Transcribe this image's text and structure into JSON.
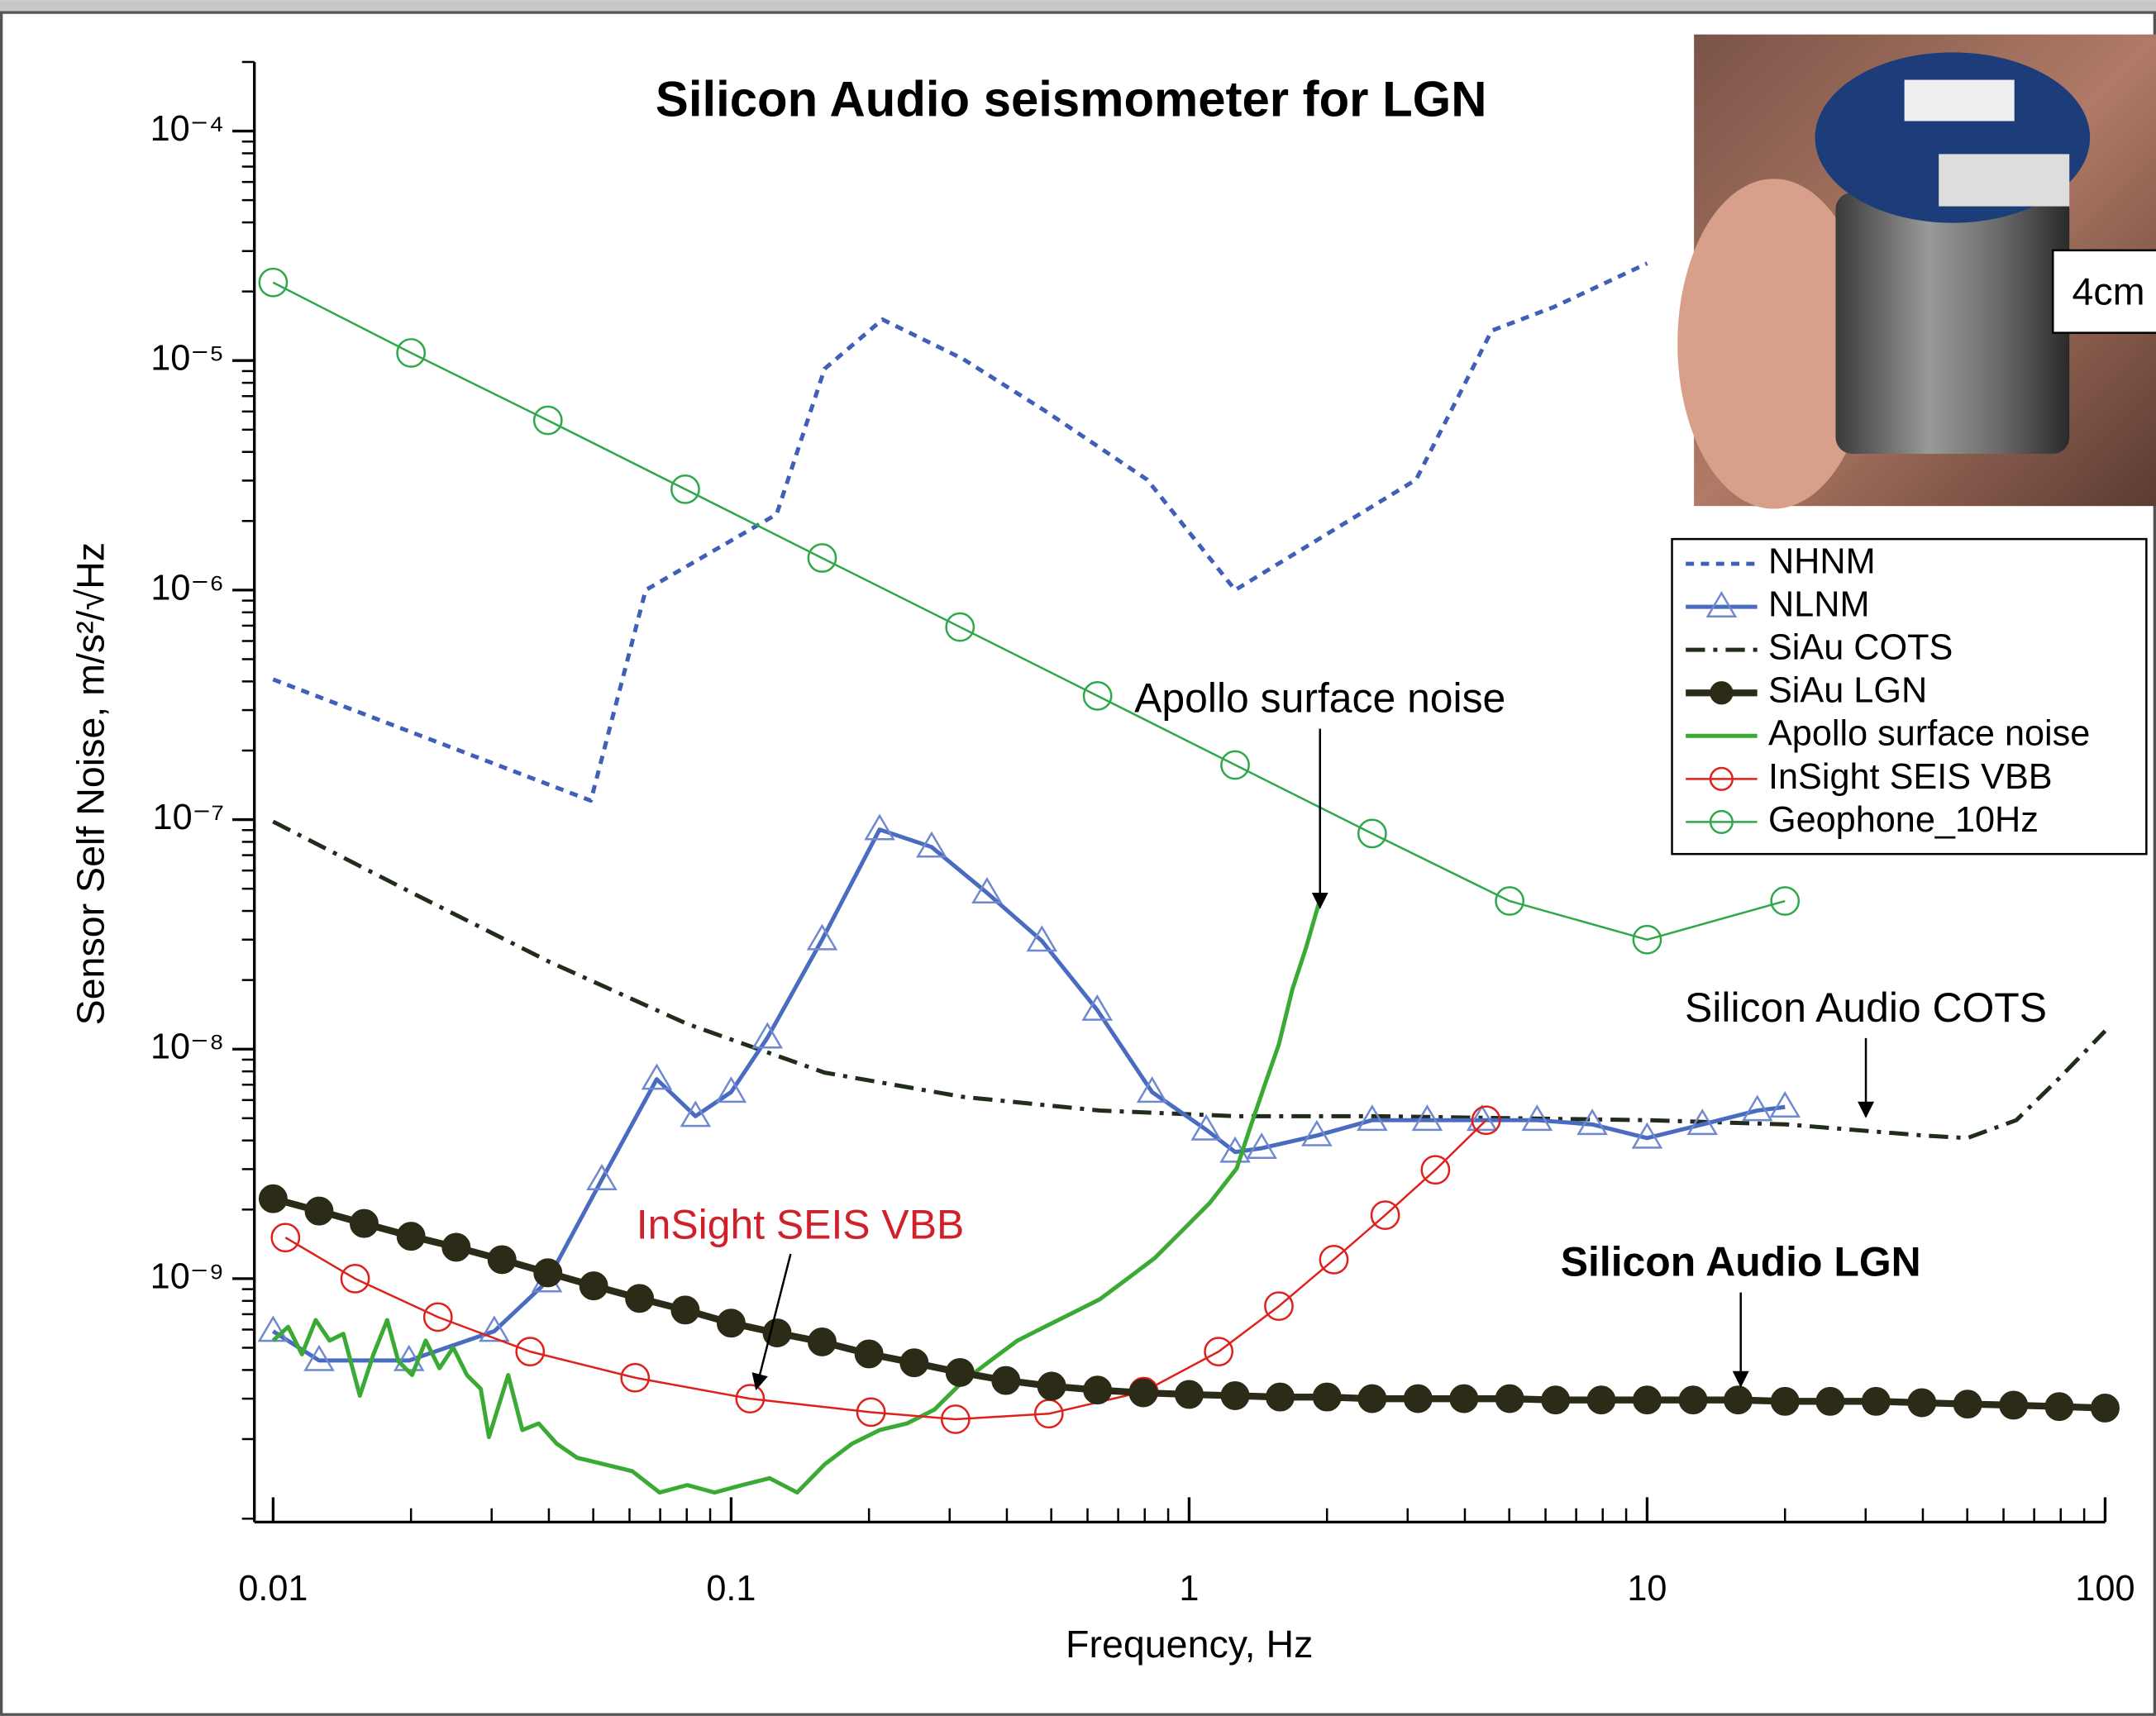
{
  "chart_data": {
    "type": "line",
    "title": "Silicon Audio seismometer for LGN",
    "x_label": "Frequency, Hz",
    "y_label": "Sensor Self Noise, m/s²/√Hz",
    "xscale": "log",
    "yscale": "log",
    "xlim": [
      0.0091,
      100
    ],
    "ylim": [
      8.7e-11,
      0.0002
    ],
    "xticks": [
      0.01,
      0.1,
      1,
      10,
      100
    ],
    "yticks": [
      {
        "value": 0.0001,
        "label": "10⁻⁴"
      },
      {
        "value": 1e-05,
        "label": "10⁻⁵"
      },
      {
        "value": 1e-06,
        "label": "10⁻⁶"
      },
      {
        "value": 1e-07,
        "label": "10⁻⁷"
      },
      {
        "value": 1e-08,
        "label": "10⁻⁸"
      },
      {
        "value": 1e-09,
        "label": "10⁻⁹"
      }
    ],
    "legend": "upper right",
    "inset_label": "4cm",
    "series": [
      {
        "name": "NHNM",
        "color": "#3f5fb8",
        "dash": "dotted",
        "marker": "none",
        "width": 3,
        "x": [
          0.01,
          0.0494,
          0.0651,
          0.1257,
          0.16,
          0.214,
          0.32,
          0.484,
          0.81,
          1.26,
          3.13,
          4.58,
          6.25,
          10
        ],
        "values": [
          4.08e-07,
          1.21e-07,
          1e-06,
          2.14e-06,
          9.2e-06,
          1.51e-05,
          1.02e-05,
          6.05e-06,
          3.03e-06,
          1e-06,
          3.03e-06,
          1.35e-05,
          1.71e-05,
          2.65e-05
        ]
      },
      {
        "name": "NLNM",
        "color": "#4a6cc0",
        "dash": "solid",
        "marker": "triangle",
        "width": 3,
        "x": [
          0.01,
          0.0126,
          0.0198,
          0.0304,
          0.0396,
          0.0522,
          0.0688,
          0.0836,
          0.1,
          0.12,
          0.158,
          0.211,
          0.274,
          0.362,
          0.477,
          0.63,
          0.83,
          1.09,
          1.26,
          1.44,
          1.9,
          2.51,
          3.31,
          4.36,
          5.75,
          7.59,
          10,
          13.2,
          17.4,
          20
        ],
        "values": [
          5.9e-10,
          4.4e-10,
          4.4e-10,
          5.9e-10,
          9.7e-10,
          2.7e-09,
          7.4e-09,
          5.1e-09,
          6.5e-09,
          1.12e-08,
          3e-08,
          9.05e-08,
          7.6e-08,
          4.8e-08,
          2.96e-08,
          1.48e-08,
          6.5e-09,
          4.45e-09,
          3.56e-09,
          3.7e-09,
          4.2e-09,
          4.9e-09,
          4.9e-09,
          4.9e-09,
          4.9e-09,
          4.7e-09,
          4.1e-09,
          4.7e-09,
          5.4e-09,
          5.6e-09
        ]
      },
      {
        "name": "SiAu COTS",
        "color": "#222c1a",
        "dash": "dashdot",
        "marker": "none",
        "width": 3,
        "x": [
          0.01,
          0.0201,
          0.0401,
          0.0801,
          0.16,
          0.32,
          0.638,
          1.27,
          2.54,
          5.1,
          10.1,
          20.2,
          40.3,
          50,
          64,
          79,
          100
        ],
        "values": [
          9.8e-08,
          4.8e-08,
          2.4e-08,
          1.29e-08,
          7.9e-09,
          6.2e-09,
          5.4e-09,
          5.1e-09,
          5.1e-09,
          5e-09,
          4.9e-09,
          4.7e-09,
          4.2e-09,
          4.1e-09,
          4.9e-09,
          7.4e-09,
          1.2e-08
        ]
      },
      {
        "name": "SiAu LGN",
        "color": "#2b2b17",
        "dash": "solid",
        "marker": "filled-circle",
        "width": 5,
        "x": [
          0.01,
          0.0126,
          0.0158,
          0.02,
          0.0251,
          0.0316,
          0.0398,
          0.0501,
          0.0631,
          0.0794,
          0.1,
          0.126,
          0.158,
          0.2,
          0.251,
          0.316,
          0.398,
          0.501,
          0.631,
          0.794,
          1,
          1.26,
          1.58,
          2,
          2.51,
          3.16,
          3.98,
          5.01,
          6.31,
          7.94,
          10,
          12.6,
          15.8,
          20,
          25.1,
          31.6,
          39.8,
          50.1,
          63.1,
          79.4,
          100
        ],
        "values": [
          2.23e-09,
          1.97e-09,
          1.74e-09,
          1.53e-09,
          1.37e-09,
          1.21e-09,
          1.06e-09,
          9.3e-10,
          8.2e-10,
          7.3e-10,
          6.4e-10,
          5.8e-10,
          5.3e-10,
          4.7e-10,
          4.3e-10,
          3.9e-10,
          3.6e-10,
          3.4e-10,
          3.27e-10,
          3.18e-10,
          3.13e-10,
          3.09e-10,
          3.05e-10,
          3.05e-10,
          3e-10,
          3e-10,
          3e-10,
          3e-10,
          2.96e-10,
          2.96e-10,
          2.96e-10,
          2.96e-10,
          2.96e-10,
          2.92e-10,
          2.92e-10,
          2.92e-10,
          2.88e-10,
          2.84e-10,
          2.81e-10,
          2.77e-10,
          2.73e-10
        ]
      },
      {
        "name": "Apollo surface noise",
        "color": "#3aaa35",
        "dash": "solid",
        "marker": "none",
        "width": 3,
        "x": [
          0.01,
          0.01079,
          0.01156,
          0.01239,
          0.01328,
          0.01423,
          0.01546,
          0.01656,
          0.01774,
          0.01876,
          0.02011,
          0.02154,
          0.02308,
          0.02473,
          0.0265,
          0.0284,
          0.0296,
          0.0326,
          0.035,
          0.038,
          0.0416,
          0.0461,
          0.053,
          0.0608,
          0.0698,
          0.0802,
          0.092,
          0.1057,
          0.1213,
          0.1393,
          0.16,
          0.1837,
          0.211,
          0.242,
          0.278,
          0.32,
          0.367,
          0.422,
          0.484,
          0.556,
          0.638,
          0.733,
          0.841,
          0.966,
          1.11,
          1.27,
          1.36,
          1.46,
          1.57,
          1.68,
          1.8,
          1.95
        ],
        "values": [
          5.37e-10,
          6.17e-10,
          4.68e-10,
          6.6e-10,
          5.37e-10,
          5.75e-10,
          3.09e-10,
          4.68e-10,
          6.6e-10,
          4.37e-10,
          3.8e-10,
          5.37e-10,
          4.07e-10,
          5.01e-10,
          3.8e-10,
          3.31e-10,
          2.04e-10,
          3.8e-10,
          2.19e-10,
          2.34e-10,
          1.91e-10,
          1.66e-10,
          1.55e-10,
          1.45e-10,
          1.17e-10,
          1.26e-10,
          1.17e-10,
          1.26e-10,
          1.35e-10,
          1.17e-10,
          1.55e-10,
          1.91e-10,
          2.19e-10,
          2.34e-10,
          2.69e-10,
          3.55e-10,
          4.37e-10,
          5.37e-10,
          6.17e-10,
          7.08e-10,
          8.13e-10,
          1e-09,
          1.23e-09,
          1.62e-09,
          2.14e-09,
          3.02e-09,
          4.57e-09,
          6.92e-09,
          1.05e-08,
          1.82e-08,
          2.76e-08,
          4.8e-08
        ]
      },
      {
        "name": "InSight SEIS VBB",
        "color": "#e0201c",
        "dash": "solid",
        "marker": "circle",
        "width": 1.5,
        "x": [
          0.01064,
          0.0151,
          0.0229,
          0.0364,
          0.0617,
          0.11,
          0.202,
          0.309,
          0.494,
          0.796,
          1.16,
          1.57,
          2.07,
          2.68,
          3.45,
          4.45
        ],
        "values": [
          1.51e-09,
          1e-09,
          6.8e-10,
          4.81e-10,
          3.7e-10,
          3e-10,
          2.62e-10,
          2.44e-10,
          2.58e-10,
          3.22e-10,
          4.81e-10,
          7.59e-10,
          1.21e-09,
          1.89e-09,
          2.98e-09,
          4.9e-09
        ]
      },
      {
        "name": "Geophone_10Hz",
        "color": "#2ea84a",
        "dash": "solid",
        "marker": "circle",
        "width": 1.5,
        "x": [
          0.01,
          0.02,
          0.0398,
          0.0794,
          0.158,
          0.316,
          0.631,
          1.26,
          2.51,
          5.01,
          10,
          20
        ],
        "values": [
          2.19e-05,
          1.08e-05,
          5.49e-06,
          2.75e-06,
          1.38e-06,
          6.9e-07,
          3.46e-07,
          1.73e-07,
          8.7e-08,
          4.42e-08,
          3e-08,
          4.42e-08
        ]
      }
    ],
    "annotations": [
      {
        "text": "Apollo surface noise"
      },
      {
        "text": "InSight SEIS VBB",
        "color": "#d0202a"
      },
      {
        "text": "Silicon Audio COTS"
      },
      {
        "text": "Silicon Audio LGN",
        "bold": true
      }
    ]
  }
}
